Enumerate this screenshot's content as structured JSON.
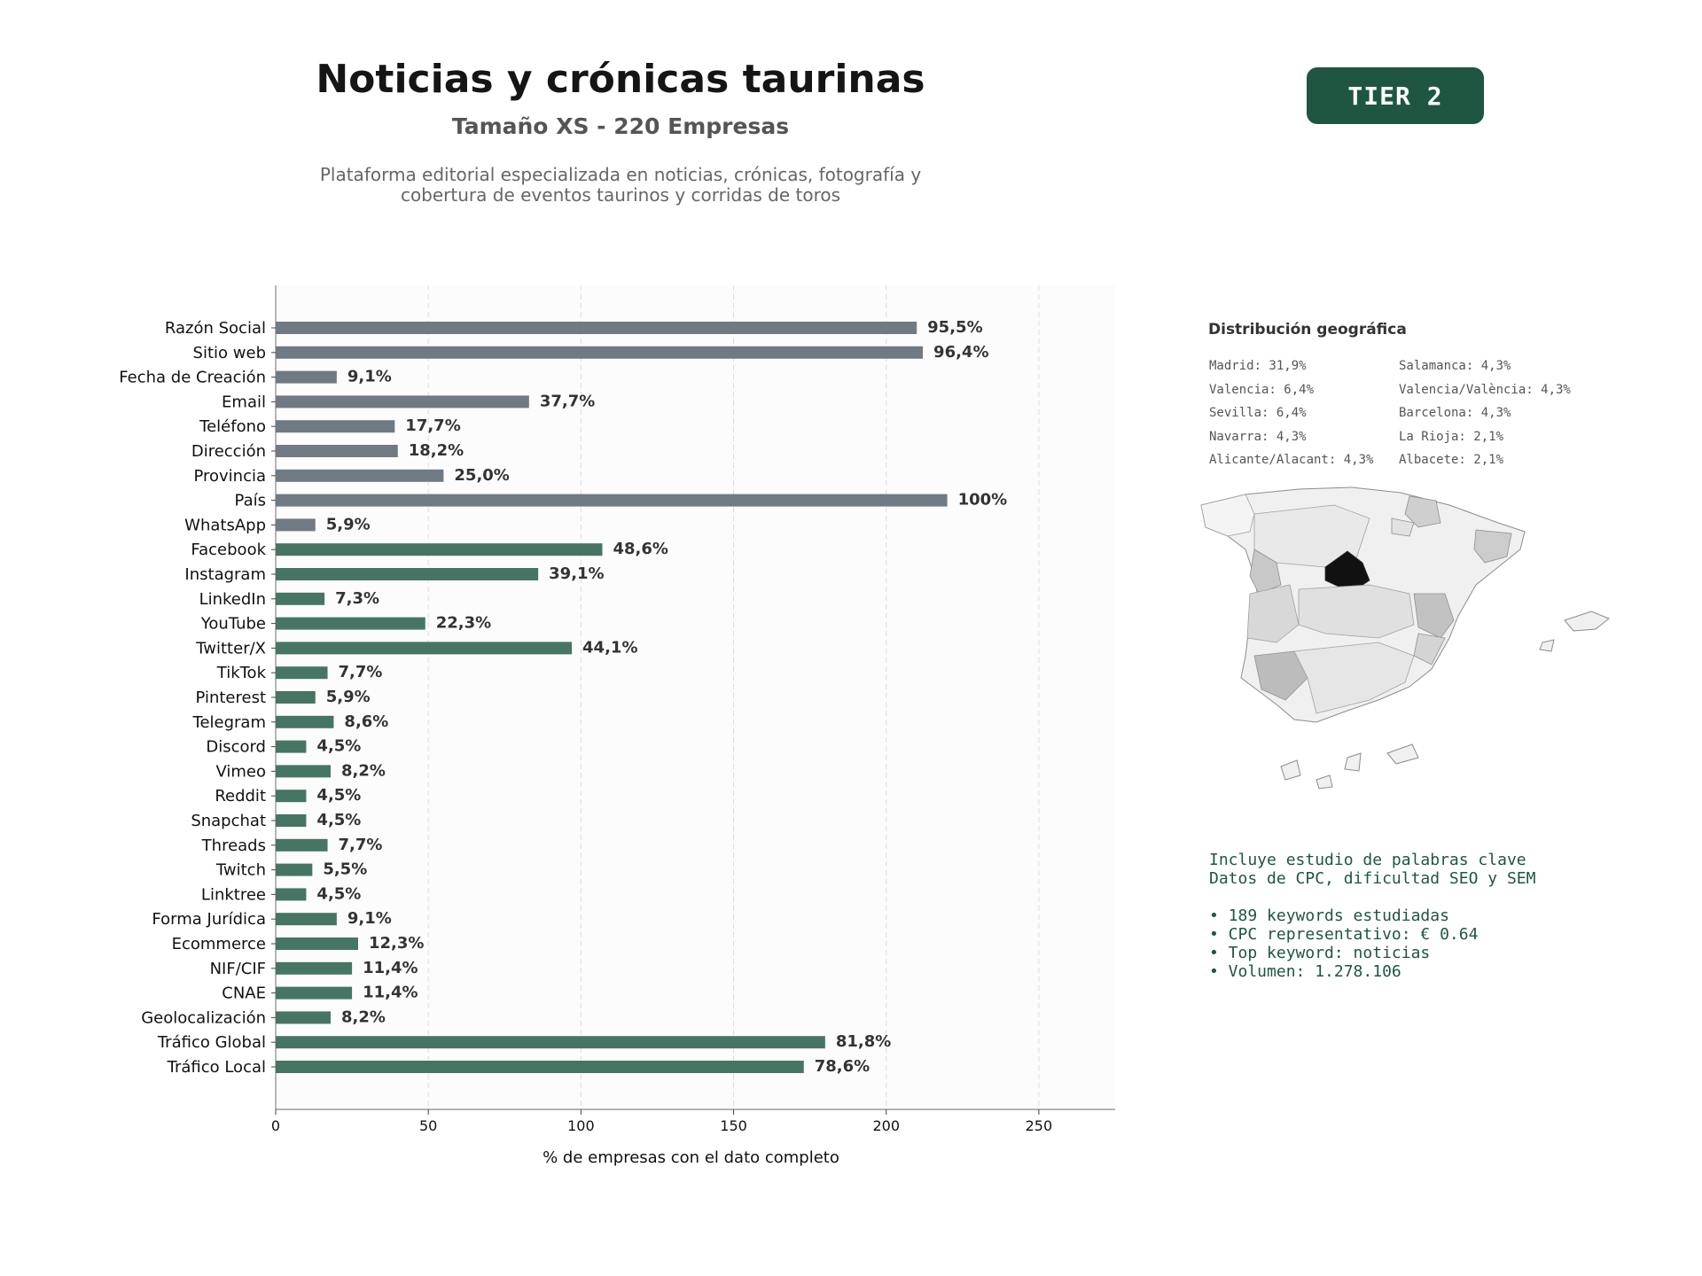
{
  "header": {
    "title": "Noticias y crónicas taurinas",
    "subtitle": "Tamaño XS - 220 Empresas",
    "description_line1": "Plataforma editorial especializada en noticias, crónicas, fotografía y",
    "description_line2": "cobertura de eventos taurinos y corridas de toros",
    "tier": "TIER 2"
  },
  "colors": {
    "gray_bar": "#6f7a83",
    "green_bar": "#467563",
    "accent": "#1e5642",
    "madrid": "#111111"
  },
  "chart_data": {
    "type": "bar",
    "orientation": "horizontal",
    "xlabel": "% de empresas con el dato completo",
    "xlim": [
      0,
      275
    ],
    "xticks": [
      0,
      50,
      100,
      150,
      200,
      250
    ],
    "grid": "vertical dashed",
    "categories": [
      "Razón Social",
      "Sitio web",
      "Fecha de Creación",
      "Email",
      "Teléfono",
      "Dirección",
      "Provincia",
      "País",
      "WhatsApp",
      "Facebook",
      "Instagram",
      "LinkedIn",
      "YouTube",
      "Twitter/X",
      "TikTok",
      "Pinterest",
      "Telegram",
      "Discord",
      "Vimeo",
      "Reddit",
      "Snapchat",
      "Threads",
      "Twitch",
      "Linktree",
      "Forma Jurídica",
      "Ecommerce",
      "NIF/CIF",
      "CNAE",
      "Geolocalización",
      "Tráfico Global",
      "Tráfico Local"
    ],
    "values": [
      210,
      212,
      20,
      83,
      39,
      40,
      55,
      220,
      13,
      107,
      86,
      16,
      49,
      97,
      17,
      13,
      19,
      10,
      18,
      10,
      10,
      17,
      12,
      10,
      20,
      27,
      25,
      25,
      18,
      180,
      173
    ],
    "labels": [
      "95,5%",
      "96,4%",
      "9,1%",
      "37,7%",
      "17,7%",
      "18,2%",
      "25,0%",
      "100%",
      "5,9%",
      "48,6%",
      "39,1%",
      "7,3%",
      "22,3%",
      "44,1%",
      "7,7%",
      "5,9%",
      "8,6%",
      "4,5%",
      "8,2%",
      "4,5%",
      "4,5%",
      "7,7%",
      "5,5%",
      "4,5%",
      "9,1%",
      "12,3%",
      "11,4%",
      "11,4%",
      "8,2%",
      "81,8%",
      "78,6%"
    ],
    "groups": [
      "gray",
      "gray",
      "gray",
      "gray",
      "gray",
      "gray",
      "gray",
      "gray",
      "gray",
      "green",
      "green",
      "green",
      "green",
      "green",
      "green",
      "green",
      "green",
      "green",
      "green",
      "green",
      "green",
      "green",
      "green",
      "green",
      "green",
      "green",
      "green",
      "green",
      "green",
      "green",
      "green"
    ]
  },
  "geo": {
    "title": "Distribución geográfica",
    "col1": [
      "Madrid: 31,9%",
      "Valencia: 6,4%",
      "Sevilla: 6,4%",
      "Navarra: 4,3%",
      "Alicante/Alacant: 4,3%"
    ],
    "col2": [
      "Salamanca: 4,3%",
      "Valencia/València: 4,3%",
      "Barcelona: 4,3%",
      "La Rioja: 2,1%",
      "Albacete: 2,1%"
    ]
  },
  "keywords": {
    "line1": "Incluye estudio de palabras clave",
    "line2": "Datos de CPC, dificultad SEO y SEM",
    "bullet1": "• 189 keywords estudiadas",
    "bullet2": "• CPC representativo: € 0.64",
    "bullet3": "• Top keyword: noticias",
    "bullet4": "• Volumen: 1.278.106"
  }
}
